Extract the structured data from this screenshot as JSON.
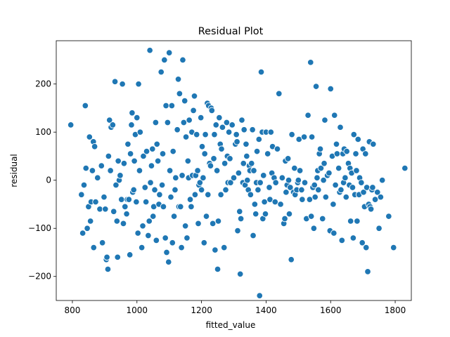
{
  "chart_data": {
    "type": "scatter",
    "title": "Residual Plot",
    "xlabel": "fitted_value",
    "ylabel": "residual",
    "xlim": [
      750,
      1850
    ],
    "ylim": [
      -250,
      290
    ],
    "xticks": [
      800,
      1000,
      1200,
      1400,
      1600,
      1800
    ],
    "yticks": [
      -200,
      -100,
      0,
      100,
      200
    ],
    "xtick_labels": [
      "800",
      "1000",
      "1200",
      "1400",
      "1600",
      "1800"
    ],
    "ytick_labels": [
      "−200",
      "−100",
      "0",
      "100",
      "200"
    ],
    "grid": false,
    "legend": "none",
    "point_color": "#1f77b4",
    "points": [
      [
        795,
        115
      ],
      [
        828,
        -30
      ],
      [
        832,
        -110
      ],
      [
        836,
        -10
      ],
      [
        840,
        155
      ],
      [
        842,
        25
      ],
      [
        846,
        -100
      ],
      [
        850,
        -55
      ],
      [
        853,
        90
      ],
      [
        856,
        -85
      ],
      [
        858,
        -45
      ],
      [
        862,
        20
      ],
      [
        865,
        80
      ],
      [
        866,
        -140
      ],
      [
        869,
        70
      ],
      [
        872,
        -45
      ],
      [
        878,
        5
      ],
      [
        885,
        -60
      ],
      [
        890,
        30
      ],
      [
        893,
        -130
      ],
      [
        898,
        -35
      ],
      [
        902,
        -60
      ],
      [
        905,
        -165
      ],
      [
        907,
        -160
      ],
      [
        910,
        -185
      ],
      [
        912,
        50
      ],
      [
        915,
        125
      ],
      [
        918,
        20
      ],
      [
        920,
        110
      ],
      [
        925,
        115
      ],
      [
        928,
        -65
      ],
      [
        932,
        205
      ],
      [
        935,
        -10
      ],
      [
        938,
        -85
      ],
      [
        940,
        -160
      ],
      [
        942,
        40
      ],
      [
        945,
        0
      ],
      [
        948,
        10
      ],
      [
        952,
        -40
      ],
      [
        955,
        200
      ],
      [
        958,
        -90
      ],
      [
        960,
        35
      ],
      [
        963,
        -55
      ],
      [
        968,
        -70
      ],
      [
        970,
        -40
      ],
      [
        972,
        75
      ],
      [
        975,
        -40
      ],
      [
        978,
        -155
      ],
      [
        980,
        55
      ],
      [
        983,
        115
      ],
      [
        985,
        140
      ],
      [
        987,
        -25
      ],
      [
        990,
        -20
      ],
      [
        992,
        40
      ],
      [
        995,
        95
      ],
      [
        998,
        -45
      ],
      [
        1000,
        130
      ],
      [
        1003,
        -110
      ],
      [
        1005,
        200
      ],
      [
        1008,
        20
      ],
      [
        1010,
        100
      ],
      [
        1015,
        -140
      ],
      [
        1018,
        -95
      ],
      [
        1020,
        50
      ],
      [
        1025,
        -15
      ],
      [
        1028,
        -45
      ],
      [
        1030,
        60
      ],
      [
        1035,
        -115
      ],
      [
        1038,
        -85
      ],
      [
        1040,
        270
      ],
      [
        1042,
        -5
      ],
      [
        1045,
        30
      ],
      [
        1048,
        65
      ],
      [
        1050,
        -75
      ],
      [
        1052,
        -55
      ],
      [
        1055,
        -20
      ],
      [
        1058,
        120
      ],
      [
        1060,
        -125
      ],
      [
        1062,
        75
      ],
      [
        1065,
        40
      ],
      [
        1068,
        -50
      ],
      [
        1070,
        -30
      ],
      [
        1075,
        225
      ],
      [
        1078,
        -10
      ],
      [
        1080,
        55
      ],
      [
        1082,
        -55
      ],
      [
        1085,
        250
      ],
      [
        1088,
        -120
      ],
      [
        1090,
        155
      ],
      [
        1092,
        -150
      ],
      [
        1095,
        120
      ],
      [
        1098,
        -170
      ],
      [
        1100,
        265
      ],
      [
        1102,
        20
      ],
      [
        1105,
        -35
      ],
      [
        1108,
        155
      ],
      [
        1110,
        -130
      ],
      [
        1112,
        60
      ],
      [
        1115,
        -75
      ],
      [
        1118,
        -20
      ],
      [
        1120,
        5
      ],
      [
        1125,
        105
      ],
      [
        1128,
        210
      ],
      [
        1130,
        -55
      ],
      [
        1132,
        180
      ],
      [
        1135,
        -55
      ],
      [
        1138,
        -140
      ],
      [
        1140,
        10
      ],
      [
        1142,
        250
      ],
      [
        1145,
        120
      ],
      [
        1148,
        165
      ],
      [
        1150,
        -95
      ],
      [
        1152,
        90
      ],
      [
        1155,
        -120
      ],
      [
        1158,
        40
      ],
      [
        1160,
        5
      ],
      [
        1162,
        125
      ],
      [
        1165,
        -40
      ],
      [
        1168,
        -55
      ],
      [
        1170,
        100
      ],
      [
        1172,
        10
      ],
      [
        1175,
        145
      ],
      [
        1178,
        175
      ],
      [
        1180,
        -30
      ],
      [
        1182,
        10
      ],
      [
        1185,
        95
      ],
      [
        1188,
        20
      ],
      [
        1190,
        -90
      ],
      [
        1192,
        -10
      ],
      [
        1195,
        -5
      ],
      [
        1198,
        130
      ],
      [
        1200,
        -20
      ],
      [
        1202,
        70
      ],
      [
        1205,
        5
      ],
      [
        1208,
        -130
      ],
      [
        1210,
        55
      ],
      [
        1212,
        95
      ],
      [
        1215,
        -75
      ],
      [
        1218,
        160
      ],
      [
        1220,
        -30
      ],
      [
        1222,
        155
      ],
      [
        1225,
        35
      ],
      [
        1228,
        30
      ],
      [
        1230,
        150
      ],
      [
        1232,
        145
      ],
      [
        1235,
        -90
      ],
      [
        1238,
        45
      ],
      [
        1240,
        95
      ],
      [
        1242,
        -145
      ],
      [
        1245,
        115
      ],
      [
        1248,
        20
      ],
      [
        1250,
        -185
      ],
      [
        1252,
        -85
      ],
      [
        1255,
        130
      ],
      [
        1258,
        75
      ],
      [
        1260,
        -30
      ],
      [
        1262,
        65
      ],
      [
        1265,
        110
      ],
      [
        1270,
        -140
      ],
      [
        1272,
        35
      ],
      [
        1275,
        -20
      ],
      [
        1278,
        120
      ],
      [
        1280,
        50
      ],
      [
        1282,
        -5
      ],
      [
        1285,
        100
      ],
      [
        1288,
        45
      ],
      [
        1290,
        -5
      ],
      [
        1295,
        115
      ],
      [
        1300,
        5
      ],
      [
        1305,
        75
      ],
      [
        1308,
        95
      ],
      [
        1310,
        80
      ],
      [
        1312,
        -105
      ],
      [
        1315,
        15
      ],
      [
        1318,
        -65
      ],
      [
        1320,
        -195
      ],
      [
        1322,
        -80
      ],
      [
        1325,
        125
      ],
      [
        1328,
        -5
      ],
      [
        1330,
        35
      ],
      [
        1332,
        105
      ],
      [
        1335,
        -10
      ],
      [
        1338,
        75
      ],
      [
        1340,
        50
      ],
      [
        1342,
        0
      ],
      [
        1345,
        -20
      ],
      [
        1348,
        30
      ],
      [
        1350,
        20
      ],
      [
        1352,
        -30
      ],
      [
        1355,
        35
      ],
      [
        1358,
        105
      ],
      [
        1360,
        -115
      ],
      [
        1362,
        20
      ],
      [
        1365,
        -50
      ],
      [
        1368,
        -70
      ],
      [
        1370,
        -5
      ],
      [
        1372,
        60
      ],
      [
        1375,
        -20
      ],
      [
        1378,
        85
      ],
      [
        1380,
        -240
      ],
      [
        1382,
        -5
      ],
      [
        1385,
        225
      ],
      [
        1388,
        100
      ],
      [
        1390,
        -80
      ],
      [
        1392,
        10
      ],
      [
        1395,
        -45
      ],
      [
        1398,
        -70
      ],
      [
        1400,
        100
      ],
      [
        1405,
        55
      ],
      [
        1410,
        -15
      ],
      [
        1412,
        -40
      ],
      [
        1415,
        100
      ],
      [
        1418,
        15
      ],
      [
        1420,
        70
      ],
      [
        1425,
        5
      ],
      [
        1428,
        -45
      ],
      [
        1430,
        -5
      ],
      [
        1435,
        65
      ],
      [
        1440,
        180
      ],
      [
        1445,
        -50
      ],
      [
        1450,
        5
      ],
      [
        1455,
        -90
      ],
      [
        1458,
        -80
      ],
      [
        1460,
        40
      ],
      [
        1462,
        -25
      ],
      [
        1465,
        -10
      ],
      [
        1468,
        45
      ],
      [
        1470,
        0
      ],
      [
        1472,
        -70
      ],
      [
        1475,
        -15
      ],
      [
        1478,
        -165
      ],
      [
        1480,
        95
      ],
      [
        1485,
        -25
      ],
      [
        1488,
        25
      ],
      [
        1490,
        -30
      ],
      [
        1495,
        -20
      ],
      [
        1498,
        -5
      ],
      [
        1500,
        0
      ],
      [
        1502,
        85
      ],
      [
        1505,
        20
      ],
      [
        1510,
        -20
      ],
      [
        1512,
        -40
      ],
      [
        1518,
        90
      ],
      [
        1520,
        -5
      ],
      [
        1525,
        -80
      ],
      [
        1530,
        135
      ],
      [
        1535,
        -40
      ],
      [
        1538,
        245
      ],
      [
        1540,
        -75
      ],
      [
        1542,
        90
      ],
      [
        1545,
        -15
      ],
      [
        1548,
        -100
      ],
      [
        1550,
        -10
      ],
      [
        1552,
        -35
      ],
      [
        1555,
        195
      ],
      [
        1558,
        5
      ],
      [
        1560,
        20
      ],
      [
        1562,
        -20
      ],
      [
        1565,
        55
      ],
      [
        1568,
        65
      ],
      [
        1570,
        25
      ],
      [
        1575,
        -80
      ],
      [
        1578,
        0
      ],
      [
        1580,
        35
      ],
      [
        1582,
        125
      ],
      [
        1585,
        -35
      ],
      [
        1590,
        10
      ],
      [
        1595,
        15
      ],
      [
        1598,
        -105
      ],
      [
        1600,
        190
      ],
      [
        1605,
        50
      ],
      [
        1608,
        -50
      ],
      [
        1610,
        -110
      ],
      [
        1612,
        135
      ],
      [
        1615,
        -10
      ],
      [
        1618,
        75
      ],
      [
        1620,
        55
      ],
      [
        1625,
        25
      ],
      [
        1628,
        -25
      ],
      [
        1630,
        110
      ],
      [
        1632,
        -20
      ],
      [
        1635,
        -125
      ],
      [
        1638,
        55
      ],
      [
        1640,
        -5
      ],
      [
        1642,
        65
      ],
      [
        1645,
        5
      ],
      [
        1648,
        -35
      ],
      [
        1650,
        60
      ],
      [
        1655,
        35
      ],
      [
        1658,
        -10
      ],
      [
        1660,
        25
      ],
      [
        1662,
        -85
      ],
      [
        1665,
        15
      ],
      [
        1668,
        -15
      ],
      [
        1670,
        -120
      ],
      [
        1672,
        95
      ],
      [
        1675,
        -30
      ],
      [
        1678,
        55
      ],
      [
        1680,
        20
      ],
      [
        1682,
        -85
      ],
      [
        1685,
        85
      ],
      [
        1688,
        -30
      ],
      [
        1690,
        5
      ],
      [
        1695,
        -5
      ],
      [
        1698,
        -130
      ],
      [
        1700,
        65
      ],
      [
        1702,
        -25
      ],
      [
        1705,
        -55
      ],
      [
        1708,
        55
      ],
      [
        1710,
        -140
      ],
      [
        1712,
        -15
      ],
      [
        1715,
        -190
      ],
      [
        1718,
        -50
      ],
      [
        1720,
        80
      ],
      [
        1722,
        -55
      ],
      [
        1725,
        -60
      ],
      [
        1728,
        -20
      ],
      [
        1730,
        -15
      ],
      [
        1732,
        75
      ],
      [
        1738,
        -40
      ],
      [
        1745,
        -25
      ],
      [
        1750,
        -100
      ],
      [
        1755,
        -35
      ],
      [
        1760,
        0
      ],
      [
        1780,
        -75
      ],
      [
        1795,
        -140
      ],
      [
        1830,
        25
      ]
    ]
  }
}
